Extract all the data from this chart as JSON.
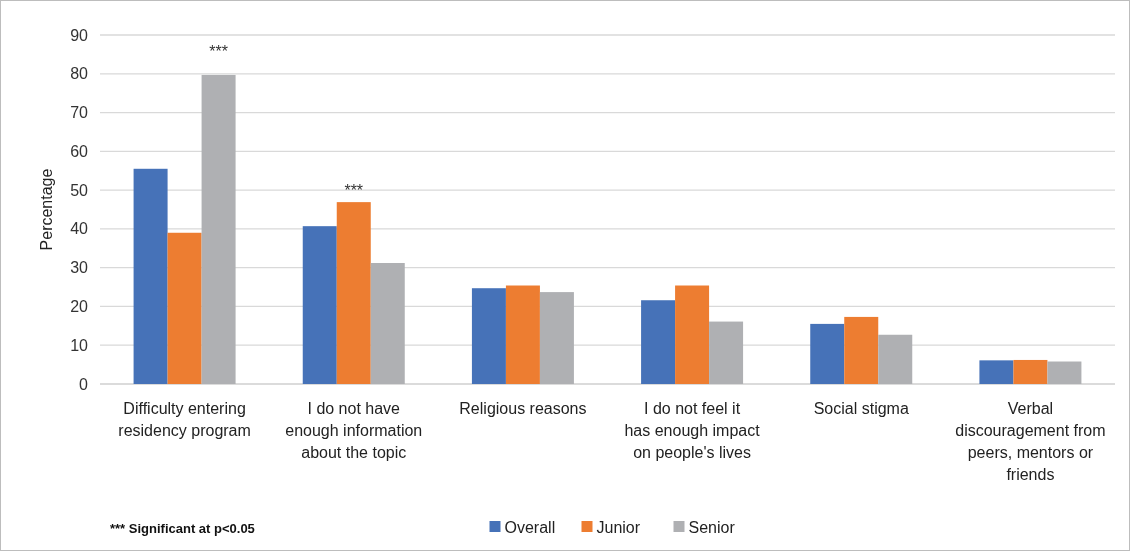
{
  "chart_data": {
    "type": "bar",
    "ylabel": "Percentage",
    "categories": [
      "Difficulty entering residency program",
      "I do not have enough information about the topic",
      "Religious reasons",
      "I do not feel it has enough impact on people's lives",
      "Social stigma",
      "Verbal discouragement from peers, mentors or friends"
    ],
    "series": [
      {
        "name": "Overall",
        "color": "#4672b8",
        "values": [
          55.5,
          40.7,
          24.7,
          21.6,
          15.5,
          6.1
        ]
      },
      {
        "name": "Junior",
        "color": "#ed7d31",
        "values": [
          39,
          46.9,
          25.4,
          25.4,
          17.3,
          6.2
        ]
      },
      {
        "name": "Senior",
        "color": "#afb0b3",
        "values": [
          79.7,
          31.2,
          23.7,
          16.1,
          12.7,
          5.8
        ]
      }
    ],
    "ylim": [
      0,
      90
    ],
    "yticks": [
      0,
      10,
      20,
      30,
      40,
      50,
      60,
      70,
      80,
      90
    ],
    "grid": "y",
    "legend": "bottom",
    "annotations": [
      "***",
      {
        "text": "***",
        "x": "I do not have enough information about the topic",
        "y": 46.9
      },
      "*** Significant at p<0.05"
    ]
  }
}
